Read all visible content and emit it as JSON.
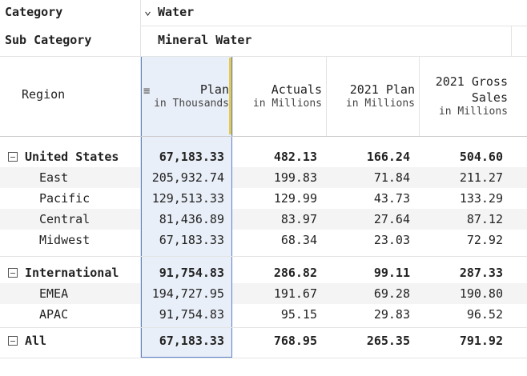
{
  "header": {
    "category_label": "Category",
    "category_value": "Water",
    "subcategory_label": "Sub Category",
    "subcategory_value": "Mineral Water",
    "region_label": "Region",
    "columns": [
      {
        "title": "Plan",
        "unit": "in Thousands"
      },
      {
        "title": "Actuals",
        "unit": "in Millions"
      },
      {
        "title": "2021 Plan",
        "unit": "in Millions"
      },
      {
        "title": "2021 Gross Sales",
        "unit": "in Millions"
      }
    ]
  },
  "rows": [
    {
      "label": "United States",
      "level": 0,
      "values": [
        "67,183.33",
        "482.13",
        "166.24",
        "504.60"
      ]
    },
    {
      "label": "East",
      "level": 1,
      "values": [
        "205,932.74",
        "199.83",
        "71.84",
        "211.27"
      ]
    },
    {
      "label": "Pacific",
      "level": 1,
      "values": [
        "129,513.33",
        "129.99",
        "43.73",
        "133.29"
      ]
    },
    {
      "label": "Central",
      "level": 1,
      "values": [
        "81,436.89",
        "83.97",
        "27.64",
        "87.12"
      ]
    },
    {
      "label": "Midwest",
      "level": 1,
      "values": [
        "67,183.33",
        "68.34",
        "23.03",
        "72.92"
      ]
    },
    {
      "label": "International",
      "level": 0,
      "values": [
        "91,754.83",
        "286.82",
        "99.11",
        "287.33"
      ]
    },
    {
      "label": "EMEA",
      "level": 1,
      "values": [
        "194,727.95",
        "191.67",
        "69.28",
        "190.80"
      ]
    },
    {
      "label": "APAC",
      "level": 1,
      "values": [
        "91,754.83",
        "95.15",
        "29.83",
        "96.52"
      ]
    },
    {
      "label": "All",
      "level": 0,
      "values": [
        "67,183.33",
        "768.95",
        "265.35",
        "791.92"
      ]
    }
  ]
}
